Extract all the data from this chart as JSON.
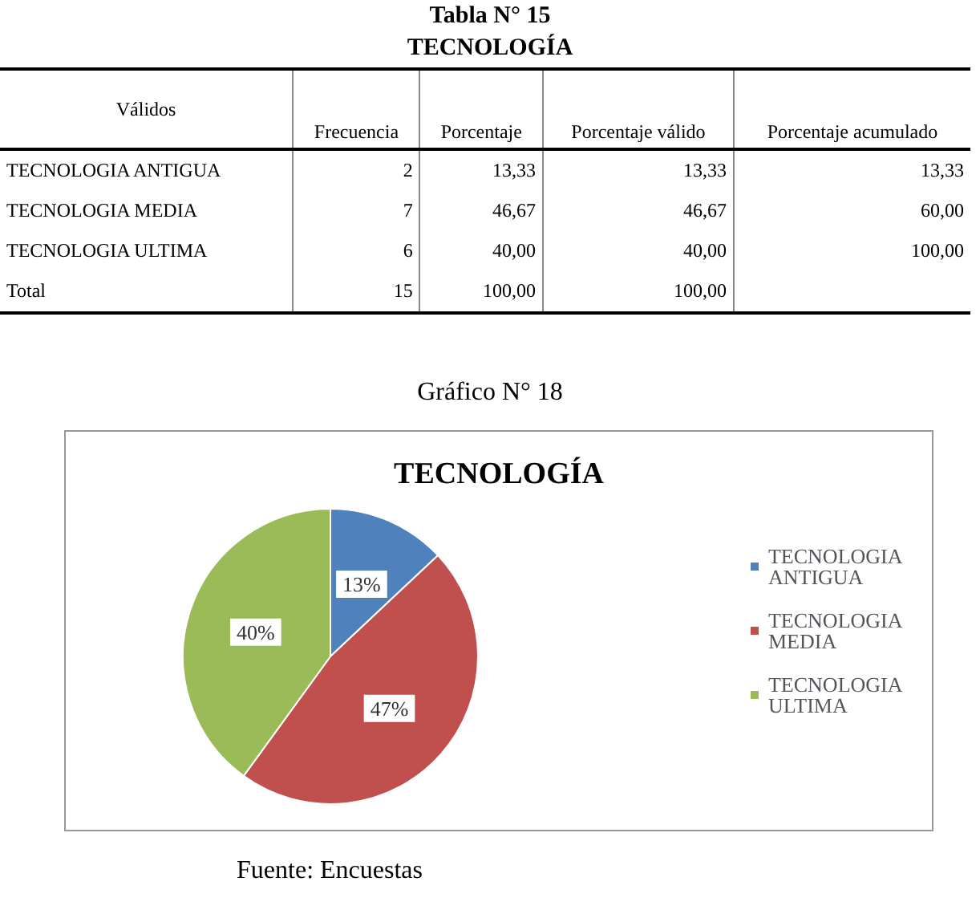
{
  "chart_data": [
    {
      "type": "other",
      "title": "Tabla N° 15",
      "subtitle": "TECNOLOGÍA",
      "categories": [
        "Válidos",
        "Frecuencia",
        "Porcentaje",
        "Porcentaje válido",
        "Porcentaje acumulado"
      ],
      "annotations": [
        "TECNOLOGIA ANTIGUA",
        "2",
        "13,33",
        "13,33",
        "13,33",
        "TECNOLOGIA MEDIA",
        "7",
        "46,67",
        "46,67",
        "60,00",
        "TECNOLOGIA ULTIMA",
        "6",
        "40,00",
        "40,00",
        "100,00",
        "Total",
        "15",
        "100,00",
        "100,00",
        null
      ]
    },
    {
      "type": "pie",
      "title": "TECNOLOGÍA",
      "categories": [
        "TECNOLOGIA ANTIGUA",
        "TECNOLOGIA MEDIA",
        "TECNOLOGIA ULTIMA"
      ],
      "values": [
        13,
        47,
        40
      ],
      "colors": [
        "#4f81bd",
        "#c0504d",
        "#9bbb59"
      ],
      "value_labels": [
        "13%",
        "47%",
        "40%"
      ],
      "legend": "right",
      "annotations": [
        "Gráfico N° 18",
        "Fuente: Encuestas"
      ]
    }
  ]
}
